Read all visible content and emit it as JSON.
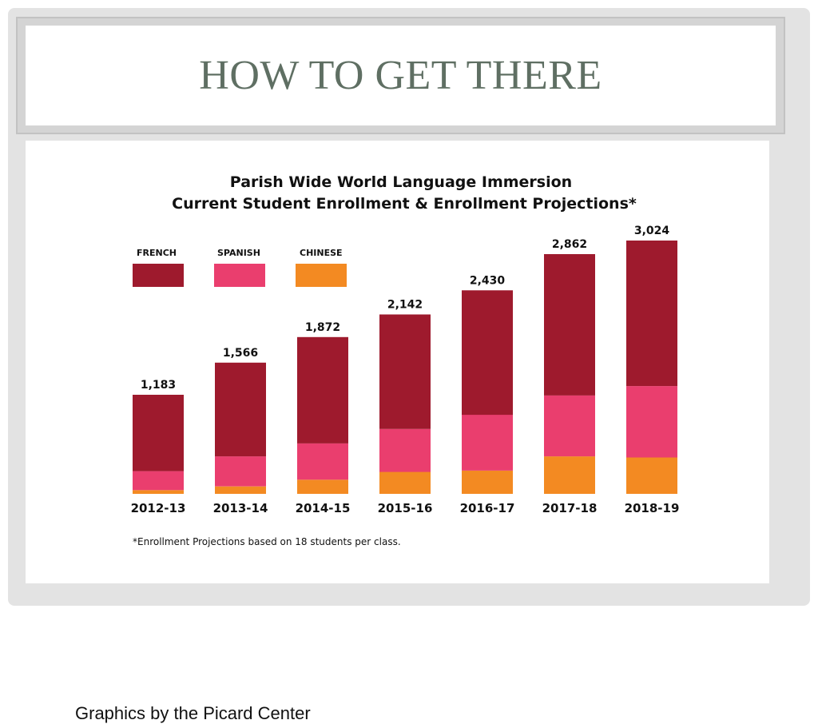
{
  "slide": {
    "title": "HOW TO GET THERE",
    "credit": "Graphics by the Picard Center"
  },
  "colors": {
    "french": "#9e1a2d",
    "spanish": "#ea3e6e",
    "chinese": "#f38a22"
  },
  "chart_data": {
    "type": "bar",
    "stacked": true,
    "title": "Parish Wide World Language Immersion",
    "subtitle": "Current Student Enrollment & Enrollment Projections*",
    "footnote": "*Enrollment Projections based on 18 students per class.",
    "categories": [
      "2012-13",
      "2013-14",
      "2014-15",
      "2015-16",
      "2016-17",
      "2017-18",
      "2018-19"
    ],
    "totals_labels": [
      "1,183",
      "1,566",
      "1,872",
      "2,142",
      "2,430",
      "2,862",
      "3,024"
    ],
    "totals": [
      1183,
      1566,
      1872,
      2142,
      2430,
      2862,
      3024
    ],
    "series": [
      {
        "name": "FRENCH",
        "color": "#9e1a2d",
        "values": [
          912,
          1119,
          1270,
          1367,
          1486,
          1688,
          1737
        ]
      },
      {
        "name": "SPANISH",
        "color": "#ea3e6e",
        "values": [
          226,
          358,
          433,
          513,
          667,
          727,
          853
        ]
      },
      {
        "name": "CHINESE",
        "color": "#f38a22",
        "values": [
          45,
          89,
          169,
          262,
          277,
          447,
          434
        ]
      }
    ],
    "ylim": [
      0,
      3024
    ],
    "grid": false,
    "legend_position": "top-left"
  }
}
